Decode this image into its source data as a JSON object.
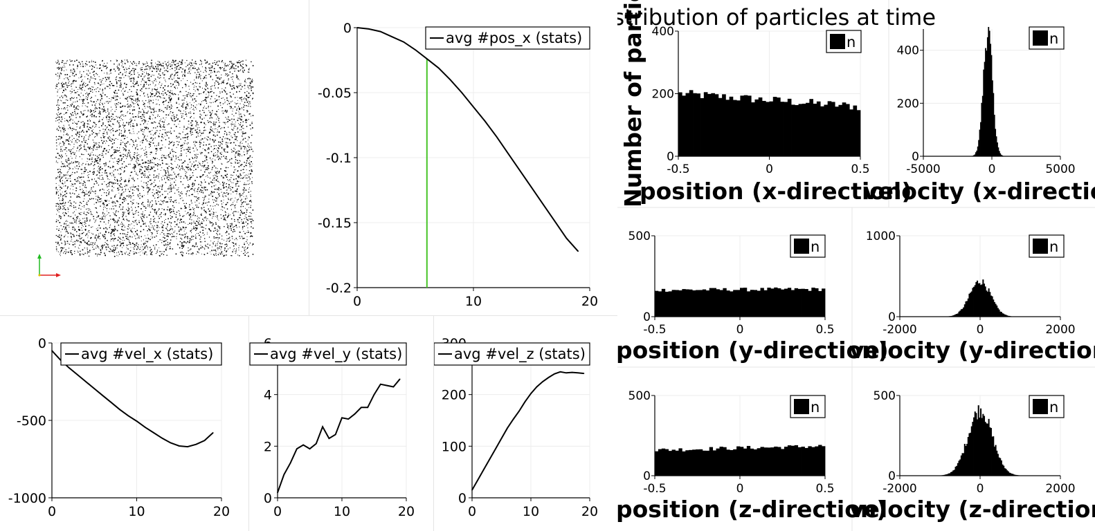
{
  "render_view": {
    "particle_count": 6000,
    "axes_colors": {
      "x": "#e02020",
      "y": "#22bb22"
    }
  },
  "hist_panel": {
    "title": "Distribution of particles at time",
    "ylabel": "Number of particle (absolute)"
  },
  "legend_marker_label": "n",
  "colors": {
    "line": "#000000",
    "marker": "#46c426",
    "grid": "#ececec",
    "bar": "#000000"
  },
  "chart_data": [
    {
      "id": "pos_x",
      "type": "line",
      "legend": "avg #pos_x (stats)",
      "xlim": [
        0,
        20
      ],
      "ylim": [
        -0.2,
        0
      ],
      "xticks": [
        "0",
        "10",
        "20"
      ],
      "xtick_values": [
        0,
        10,
        20
      ],
      "yticks": [
        "0",
        "-0.05",
        "-0.1",
        "-0.15",
        "-0.2"
      ],
      "ytick_values": [
        0,
        -0.05,
        -0.1,
        -0.15,
        -0.2
      ],
      "x": [
        0,
        1,
        2,
        3,
        4,
        5,
        6,
        7,
        8,
        9,
        10,
        11,
        12,
        13,
        14,
        15,
        16,
        17,
        18,
        19
      ],
      "y": [
        0,
        -0.001,
        -0.003,
        -0.007,
        -0.011,
        -0.017,
        -0.024,
        -0.031,
        -0.04,
        -0.05,
        -0.061,
        -0.072,
        -0.084,
        -0.097,
        -0.11,
        -0.123,
        -0.136,
        -0.149,
        -0.162,
        -0.172
      ],
      "marker_x": 6
    },
    {
      "id": "vel_x",
      "type": "line",
      "legend": "avg #vel_x (stats)",
      "xlim": [
        0,
        20
      ],
      "ylim": [
        -1000,
        0
      ],
      "xticks": [
        "0",
        "10",
        "20"
      ],
      "xtick_values": [
        0,
        10,
        20
      ],
      "yticks": [
        "0",
        "-500",
        "-1000"
      ],
      "ytick_values": [
        0,
        -500,
        -1000
      ],
      "x": [
        0,
        1,
        2,
        3,
        4,
        5,
        6,
        7,
        8,
        9,
        10,
        11,
        12,
        13,
        14,
        15,
        16,
        17,
        18,
        19
      ],
      "y": [
        -50,
        -110,
        -160,
        -205,
        -250,
        -295,
        -340,
        -385,
        -430,
        -470,
        -505,
        -545,
        -580,
        -615,
        -645,
        -665,
        -670,
        -655,
        -630,
        -580
      ]
    },
    {
      "id": "vel_y",
      "type": "line",
      "legend": "avg #vel_y (stats)",
      "xlim": [
        0,
        20
      ],
      "ylim": [
        0,
        6
      ],
      "xticks": [
        "0",
        "10",
        "20"
      ],
      "xtick_values": [
        0,
        10,
        20
      ],
      "yticks": [
        "0",
        "2",
        "4",
        "6"
      ],
      "ytick_values": [
        0,
        2,
        4,
        6
      ],
      "x": [
        0,
        1,
        2,
        3,
        4,
        5,
        6,
        7,
        8,
        9,
        10,
        11,
        12,
        13,
        14,
        15,
        16,
        17,
        18,
        19
      ],
      "y": [
        0.2,
        0.9,
        1.35,
        1.9,
        2.05,
        1.9,
        2.1,
        2.75,
        2.3,
        2.45,
        3.1,
        3.05,
        3.25,
        3.5,
        3.5,
        4.0,
        4.4,
        4.35,
        4.3,
        4.6
      ]
    },
    {
      "id": "vel_z",
      "type": "line",
      "legend": "avg #vel_z (stats)",
      "xlim": [
        0,
        20
      ],
      "ylim": [
        0,
        300
      ],
      "xticks": [
        "0",
        "10",
        "20"
      ],
      "xtick_values": [
        0,
        10,
        20
      ],
      "yticks": [
        "0",
        "100",
        "200",
        "300"
      ],
      "ytick_values": [
        0,
        100,
        200,
        300
      ],
      "x": [
        0,
        1,
        2,
        3,
        4,
        5,
        6,
        7,
        8,
        9,
        10,
        11,
        12,
        13,
        14,
        15,
        16,
        17,
        18,
        19
      ],
      "y": [
        15,
        35,
        55,
        75,
        95,
        115,
        135,
        152,
        168,
        186,
        202,
        215,
        225,
        233,
        240,
        244,
        242,
        243,
        242,
        241
      ]
    },
    {
      "id": "hist_pos_x",
      "type": "bar",
      "shape": "uniform",
      "xlabel": "position (x-direction)",
      "xlim": [
        -0.5,
        0.5
      ],
      "ylim": [
        0,
        400
      ],
      "xticks": [
        "-0.5",
        "0",
        "0.5"
      ],
      "xtick_values": [
        -0.5,
        0,
        0.5
      ],
      "yticks": [
        "0",
        "200",
        "400"
      ],
      "ytick_values": [
        0,
        200,
        400
      ],
      "level_start": 200,
      "level_end": 158,
      "noise": 14
    },
    {
      "id": "hist_vel_x",
      "type": "bar",
      "shape": "gaussian",
      "xlabel": "velocity (x-direction)",
      "xlim": [
        -5000,
        5000
      ],
      "ylim": [
        0,
        480
      ],
      "xticks": [
        "-5000",
        "0",
        "5000"
      ],
      "xtick_values": [
        -5000,
        0,
        5000
      ],
      "yticks": [
        "0",
        "200",
        "400"
      ],
      "ytick_values": [
        0,
        200,
        400
      ],
      "peak": 470,
      "center": -300,
      "sigma": 330
    },
    {
      "id": "hist_pos_y",
      "type": "bar",
      "shape": "uniform",
      "xlabel": "position (y-direction)",
      "xlim": [
        -0.5,
        0.5
      ],
      "ylim": [
        0,
        500
      ],
      "xticks": [
        "-0.5",
        "0",
        "0.5"
      ],
      "xtick_values": [
        -0.5,
        0,
        0.5
      ],
      "yticks": [
        "0",
        "500"
      ],
      "ytick_values": [
        0,
        500
      ],
      "level_start": 165,
      "level_end": 170,
      "noise": 12
    },
    {
      "id": "hist_vel_y",
      "type": "bar",
      "shape": "gaussian",
      "xlabel": "velocity (y-direction)",
      "xlim": [
        -2000,
        2000
      ],
      "ylim": [
        0,
        1000
      ],
      "xticks": [
        "-2000",
        "0",
        "2000"
      ],
      "xtick_values": [
        -2000,
        0,
        2000
      ],
      "yticks": [
        "0",
        "1000"
      ],
      "ytick_values": [
        0,
        1000
      ],
      "peak": 440,
      "center": 0,
      "sigma": 260
    },
    {
      "id": "hist_pos_z",
      "type": "bar",
      "shape": "uniform",
      "xlabel": "position (z-direction)",
      "xlim": [
        -0.5,
        0.5
      ],
      "ylim": [
        0,
        500
      ],
      "xticks": [
        "-0.5",
        "0",
        "0.5"
      ],
      "xtick_values": [
        -0.5,
        0,
        0.5
      ],
      "yticks": [
        "0",
        "500"
      ],
      "ytick_values": [
        0,
        500
      ],
      "level_start": 160,
      "level_end": 185,
      "noise": 13
    },
    {
      "id": "hist_vel_z",
      "type": "bar",
      "shape": "gaussian",
      "xlabel": "velocity (z-direction)",
      "xlim": [
        -2000,
        2000
      ],
      "ylim": [
        0,
        500
      ],
      "xticks": [
        "-2000",
        "0",
        "2000"
      ],
      "xtick_values": [
        -2000,
        0,
        2000
      ],
      "yticks": [
        "0",
        "500"
      ],
      "ytick_values": [
        0,
        500
      ],
      "peak": 410,
      "center": 0,
      "sigma": 300
    }
  ]
}
